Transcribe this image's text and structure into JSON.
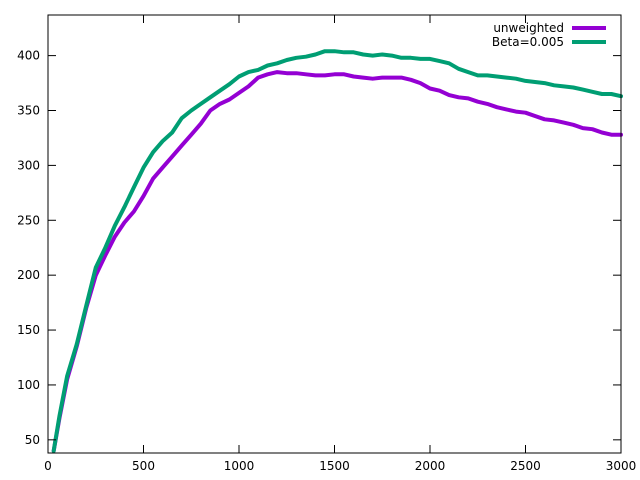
{
  "chart_data": {
    "type": "line",
    "title": "",
    "xlabel": "",
    "ylabel": "",
    "xlim": [
      0,
      3000
    ],
    "ylim": [
      38,
      437
    ],
    "xticks": [
      0,
      500,
      1000,
      1500,
      2000,
      2500,
      3000
    ],
    "yticks": [
      50,
      100,
      150,
      200,
      250,
      300,
      350,
      400
    ],
    "grid": false,
    "legend_position": "top-right",
    "series": [
      {
        "name": "unweighted",
        "color": "#9400d3",
        "x": [
          30,
          60,
          100,
          150,
          200,
          250,
          300,
          350,
          400,
          450,
          500,
          550,
          600,
          650,
          700,
          750,
          800,
          850,
          900,
          950,
          1000,
          1050,
          1100,
          1150,
          1200,
          1250,
          1300,
          1350,
          1400,
          1450,
          1500,
          1550,
          1600,
          1650,
          1700,
          1750,
          1800,
          1850,
          1900,
          1950,
          2000,
          2050,
          2100,
          2150,
          2200,
          2250,
          2300,
          2350,
          2400,
          2450,
          2500,
          2550,
          2600,
          2650,
          2700,
          2750,
          2800,
          2850,
          2900,
          2950,
          3000
        ],
        "y": [
          40,
          70,
          105,
          135,
          170,
          200,
          218,
          235,
          248,
          258,
          272,
          288,
          298,
          308,
          318,
          328,
          338,
          350,
          356,
          360,
          366,
          372,
          380,
          383,
          385,
          384,
          384,
          383,
          382,
          382,
          383,
          383,
          381,
          380,
          379,
          380,
          380,
          380,
          378,
          375,
          370,
          368,
          364,
          362,
          361,
          358,
          356,
          353,
          351,
          349,
          348,
          345,
          342,
          341,
          339,
          337,
          334,
          333,
          330,
          328,
          328
        ]
      },
      {
        "name": "Beta=0.005",
        "color": "#009e73",
        "x": [
          30,
          60,
          100,
          150,
          200,
          250,
          300,
          350,
          400,
          450,
          500,
          550,
          600,
          650,
          700,
          750,
          800,
          850,
          900,
          950,
          1000,
          1050,
          1100,
          1150,
          1200,
          1250,
          1300,
          1350,
          1400,
          1450,
          1500,
          1550,
          1600,
          1650,
          1700,
          1750,
          1800,
          1850,
          1900,
          1950,
          2000,
          2050,
          2100,
          2150,
          2200,
          2250,
          2300,
          2350,
          2400,
          2450,
          2500,
          2550,
          2600,
          2650,
          2700,
          2750,
          2800,
          2850,
          2900,
          2950,
          3000
        ],
        "y": [
          40,
          72,
          108,
          137,
          172,
          207,
          225,
          245,
          262,
          280,
          298,
          312,
          322,
          330,
          343,
          350,
          356,
          362,
          368,
          374,
          381,
          385,
          387,
          391,
          393,
          396,
          398,
          399,
          401,
          404,
          404,
          403,
          403,
          401,
          400,
          401,
          400,
          398,
          398,
          397,
          397,
          395,
          393,
          388,
          385,
          382,
          382,
          381,
          380,
          379,
          377,
          376,
          375,
          373,
          372,
          371,
          369,
          367,
          365,
          365,
          363
        ]
      }
    ]
  }
}
